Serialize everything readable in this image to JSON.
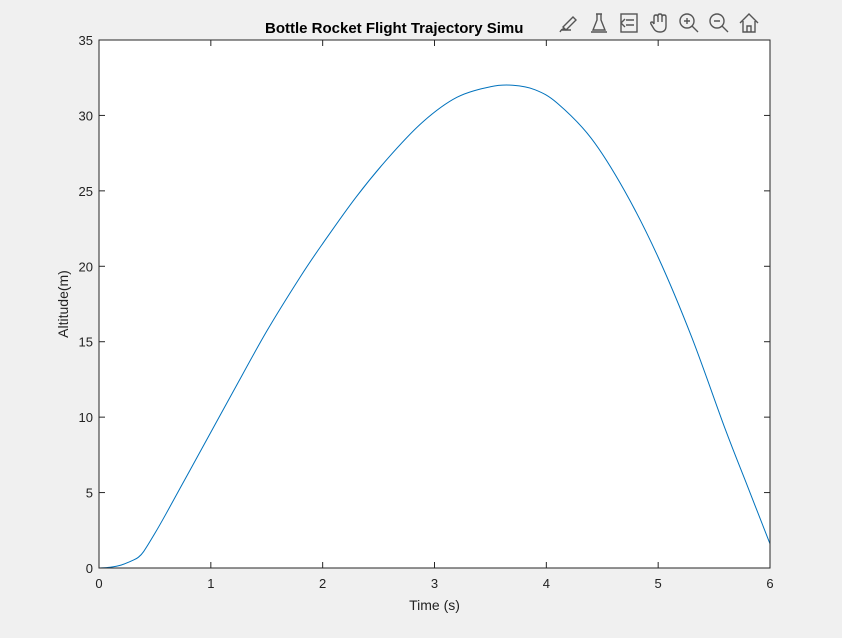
{
  "chart_data": {
    "type": "line",
    "title": "Bottle Rocket Flight Trajectory Simu",
    "xlabel": "Time (s)",
    "ylabel": "Altitude(m)",
    "xlim": [
      0,
      6
    ],
    "ylim": [
      0,
      35
    ],
    "xticks": [
      0,
      1,
      2,
      3,
      4,
      5,
      6
    ],
    "yticks": [
      0,
      5,
      10,
      15,
      20,
      25,
      30,
      35
    ],
    "grid": false,
    "line_color": "#0072bd",
    "series": [
      {
        "x": [
          0,
          0.1,
          0.2,
          0.3,
          0.35,
          0.4,
          0.5,
          0.6,
          0.8,
          1.0,
          1.2,
          1.5,
          1.8,
          2.0,
          2.3,
          2.6,
          2.9,
          3.2,
          3.5,
          3.7,
          3.9,
          4.1,
          4.4,
          4.7,
          5.0,
          5.3,
          5.6,
          5.8,
          6.0
        ],
        "y": [
          0,
          0.05,
          0.2,
          0.5,
          0.7,
          1.1,
          2.3,
          3.6,
          6.3,
          9.0,
          11.7,
          15.7,
          19.3,
          21.5,
          24.6,
          27.3,
          29.6,
          31.2,
          31.9,
          32.0,
          31.7,
          30.8,
          28.5,
          25.0,
          20.6,
          15.3,
          9.2,
          5.4,
          1.6
        ]
      }
    ]
  },
  "toolbar": {
    "tools": [
      "brush-icon",
      "data-tips-icon",
      "legend-icon",
      "pan-icon",
      "zoom-in-icon",
      "zoom-out-icon",
      "home-icon"
    ]
  }
}
